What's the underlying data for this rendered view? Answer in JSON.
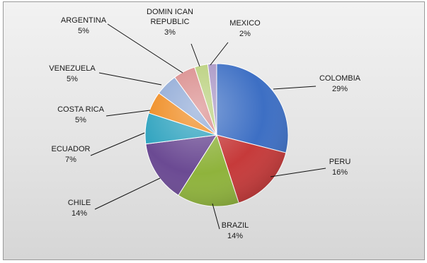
{
  "chart_data": {
    "type": "pie",
    "title": "",
    "slices": [
      {
        "label": "COLOMBIA",
        "value": 29,
        "pct_label": "29%",
        "color": "#3d6fc4"
      },
      {
        "label": "PERU",
        "value": 16,
        "pct_label": "16%",
        "color": "#c63a3a"
      },
      {
        "label": "BRAZIL",
        "value": 14,
        "pct_label": "14%",
        "color": "#8fb33c"
      },
      {
        "label": "CHILE",
        "value": 14,
        "pct_label": "14%",
        "color": "#6b4a93"
      },
      {
        "label": "ECUADOR",
        "value": 7,
        "pct_label": "7%",
        "color": "#2fa3bf"
      },
      {
        "label": "COSTA RICA",
        "value": 5,
        "pct_label": "5%",
        "color": "#ef8a1e"
      },
      {
        "label": "VENEZUELA",
        "value": 5,
        "pct_label": "5%",
        "color": "#8fa9d6"
      },
      {
        "label": "ARGENTINA",
        "value": 5,
        "pct_label": "5%",
        "color": "#d98a8a"
      },
      {
        "label": "DOMIN ICAN REPUBLIC",
        "value": 3,
        "pct_label": "3%",
        "color": "#b8cf7a"
      },
      {
        "label": "MEXICO",
        "value": 2,
        "pct_label": "2%",
        "color": "#a895c4"
      }
    ]
  }
}
